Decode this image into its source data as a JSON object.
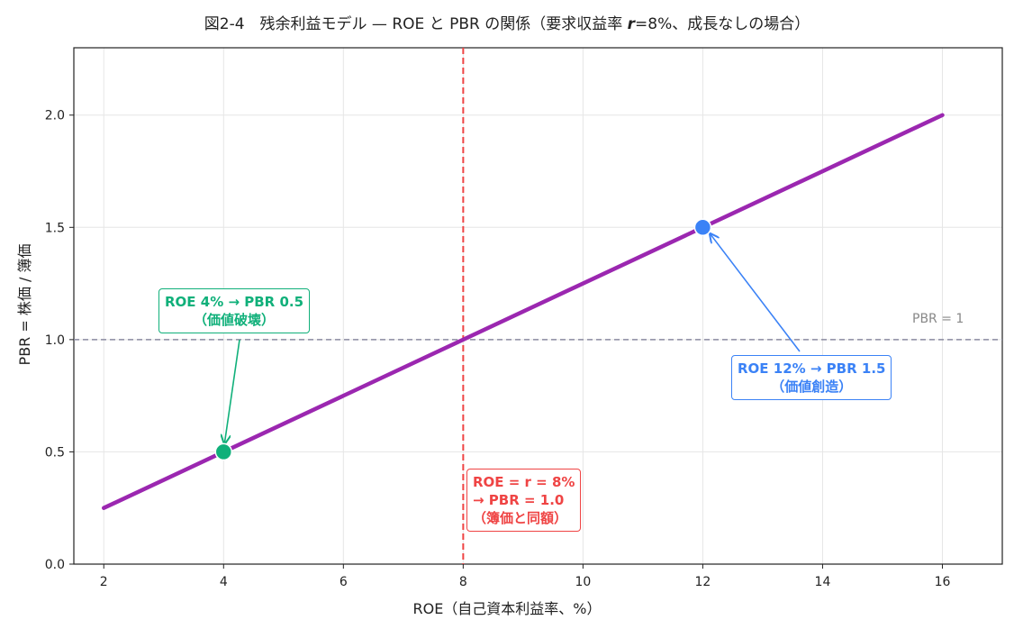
{
  "chart_data": {
    "type": "line",
    "title_prefix": "図2-4　残余利益モデル — ROE と PBR の関係（要求収益率 ",
    "title_r": "r",
    "title_suffix": "=8%、成長なしの場合）",
    "xlabel": "ROE（自己資本利益率、%）",
    "ylabel": "PBR = 株価 / 簿価",
    "xlim": [
      1.5,
      17
    ],
    "ylim": [
      0,
      2.3
    ],
    "x_ticks": [
      2,
      4,
      6,
      8,
      10,
      12,
      14,
      16
    ],
    "y_ticks": [
      0.0,
      0.5,
      1.0,
      1.5,
      2.0
    ],
    "y_tick_labels": [
      "0.0",
      "0.5",
      "1.0",
      "1.5",
      "2.0"
    ],
    "grid": true,
    "series": [
      {
        "x": [
          2,
          16
        ],
        "y": [
          0.25,
          2.0
        ],
        "color": "#9b27b0"
      }
    ],
    "points": [
      {
        "x": 4,
        "y": 0.5,
        "color": "#10b07a"
      },
      {
        "x": 12,
        "y": 1.5,
        "color": "#3b82f6"
      }
    ],
    "ref_lines": {
      "vertical_x": 8,
      "vertical_color": "#ef4444",
      "horizontal_y": 1.0,
      "horizontal_color": "#8a8aa0",
      "horizontal_label": "PBR = 1"
    },
    "annotations": [
      {
        "lines": [
          "ROE 4% → PBR 0.5",
          "（価値破壊）"
        ],
        "color": "#10b07a"
      },
      {
        "lines": [
          "ROE 12% → PBR 1.5",
          "（価値創造）"
        ],
        "color": "#3b82f6"
      },
      {
        "lines": [
          "ROE = r = 8%",
          "→ PBR = 1.0",
          "（簿価と同額）"
        ],
        "color": "#ef4444"
      }
    ]
  }
}
